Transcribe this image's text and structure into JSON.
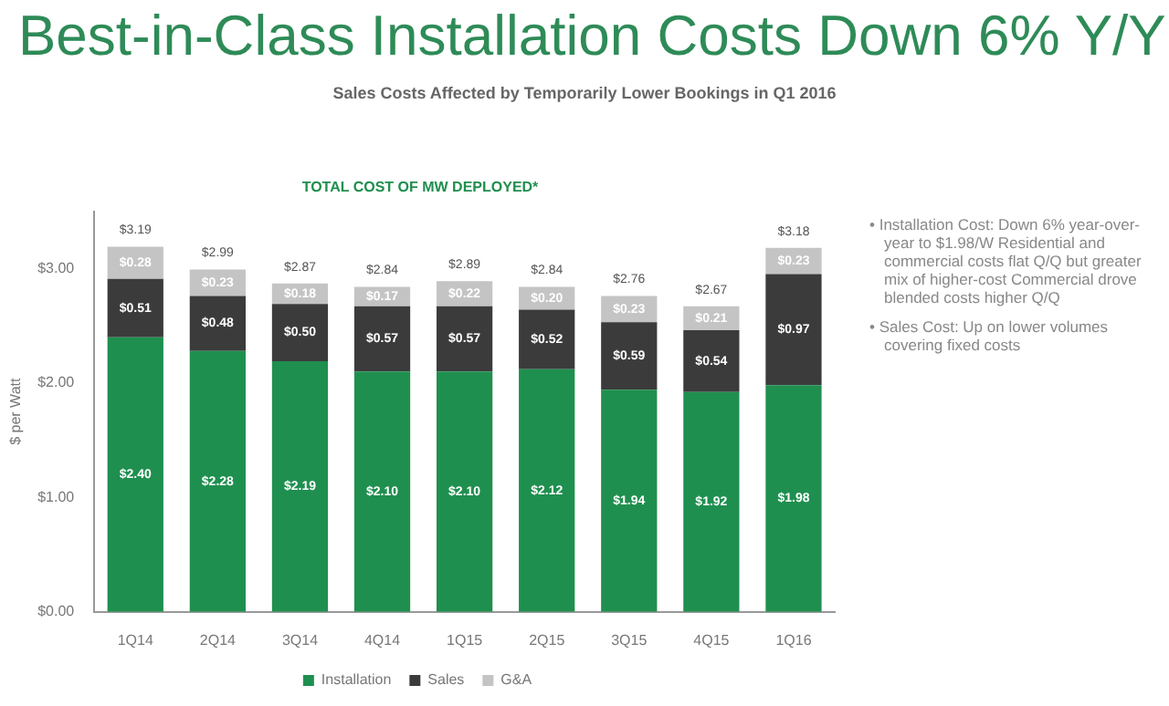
{
  "chart_data": {
    "type": "bar",
    "stacked": true,
    "title": "Best-in-Class Installation Costs Down 6% Y/Y",
    "subtitle": "Sales Costs Affected by Temporarily Lower Bookings in Q1 2016",
    "ylabel": "$ per Watt",
    "categories": [
      "1Q14",
      "2Q14",
      "3Q14",
      "4Q14",
      "1Q15",
      "2Q15",
      "3Q15",
      "4Q15",
      "1Q16"
    ],
    "series": [
      {
        "name": "Installation",
        "color": "#1f8f4f",
        "values": [
          2.4,
          2.28,
          2.19,
          2.1,
          2.1,
          2.12,
          1.94,
          1.92,
          1.98
        ],
        "value_labels": [
          "$2.40",
          "$2.28",
          "$2.19",
          "$2.10",
          "$2.10",
          "$2.12",
          "$1.94",
          "$1.92",
          "$1.98"
        ]
      },
      {
        "name": "Sales",
        "color": "#3b3b3b",
        "values": [
          0.51,
          0.48,
          0.5,
          0.57,
          0.57,
          0.52,
          0.59,
          0.54,
          0.97
        ],
        "value_labels": [
          "$0.51",
          "$0.48",
          "$0.50",
          "$0.57",
          "$0.57",
          "$0.52",
          "$0.59",
          "$0.54",
          "$0.97"
        ]
      },
      {
        "name": "G&A",
        "color": "#c4c4c4",
        "values": [
          0.28,
          0.23,
          0.18,
          0.17,
          0.22,
          0.2,
          0.23,
          0.21,
          0.23
        ],
        "value_labels": [
          "$0.28",
          "$0.23",
          "$0.18",
          "$0.17",
          "$0.22",
          "$0.20",
          "$0.23",
          "$0.21",
          "$0.23"
        ]
      }
    ],
    "totals": [
      "$3.19",
      "$2.99",
      "$2.87",
      "$2.84",
      "$2.89",
      "$2.84",
      "$2.76",
      "$2.67",
      "$3.18"
    ],
    "ylim": [
      0,
      3.5
    ],
    "yticks": [
      {
        "value": 0,
        "label": "$0.00"
      },
      {
        "value": 1,
        "label": "$1.00"
      },
      {
        "value": 2,
        "label": "$2.00"
      },
      {
        "value": 3,
        "label": "$3.00"
      }
    ],
    "grid": false,
    "legend": "bottom",
    "annotations": [
      "TOTAL COST OF MW DEPLOYED*",
      "• Installation Cost: Down 6% year-over-year to $1.98/W Residential and commercial costs flat Q/Q but greater mix of higher-cost Commercial drove blended costs higher Q/Q",
      "• Sales Cost: Up on lower volumes covering fixed costs"
    ]
  }
}
